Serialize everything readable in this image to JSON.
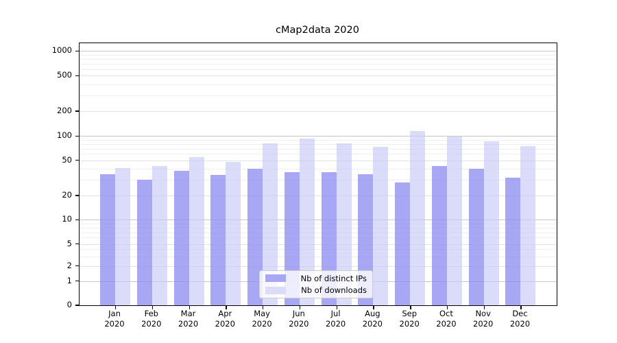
{
  "chart_data": {
    "type": "bar",
    "title": "cMap2data 2020",
    "scale": "symlog",
    "grid": "both",
    "ylim": [
      0,
      1500
    ],
    "yticks": [
      0,
      1,
      2,
      5,
      10,
      20,
      50,
      100,
      200,
      500,
      1000
    ],
    "ytick_labels": [
      "0",
      "1",
      "2",
      "5",
      "10",
      "20",
      "50",
      "100",
      "200",
      "500",
      "1000"
    ],
    "categories": [
      "Jan",
      "Feb",
      "Mar",
      "Apr",
      "May",
      "Jun",
      "Jul",
      "Aug",
      "Sep",
      "Oct",
      "Nov",
      "Dec"
    ],
    "year_label": "2020",
    "legend_position": "lower-center",
    "series": [
      {
        "name": "Nb of distinct IPs",
        "values": [
          35,
          30,
          38,
          34,
          40,
          37,
          37,
          35,
          28,
          43,
          40,
          32
        ],
        "fill": "rgba(140,140,239,0.77)",
        "swatch": "#a7a7f3"
      },
      {
        "name": "Nb of downloads",
        "values": [
          41,
          43,
          55,
          48,
          81,
          93,
          81,
          74,
          115,
          98,
          86,
          75
        ],
        "fill": "rgba(200,200,247,0.66)",
        "swatch": "#dbdbfa"
      }
    ],
    "colors": {
      "grid_decade": "#c6c6c6",
      "grid_labeled": "#e2e2e2",
      "grid_minor": "#eeeeee",
      "spine": "#000000"
    }
  }
}
